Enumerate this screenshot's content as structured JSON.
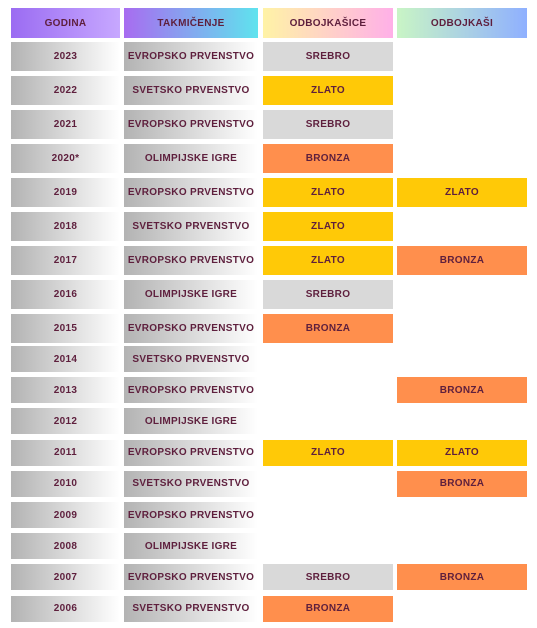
{
  "table": {
    "header": [
      "GODINA",
      "TAKMIČENJE",
      "ODBOJKAŠICE",
      "ODBOJKAŠI"
    ],
    "medal_colors": {
      "ZLATO": "#ffc907",
      "SREBRO": "#d9d9d9",
      "BRONZA": "#ff8f4d"
    },
    "rows": [
      [
        "2023",
        "EVROPSKO PRVENSTVO",
        "SREBRO",
        null
      ],
      [
        "2022",
        "SVETSKO PRVENSTVO",
        "ZLATO",
        null
      ],
      [
        "2021",
        "EVROPSKO PRVENSTVO",
        "SREBRO",
        null
      ],
      [
        "2020*",
        "OLIMPIJSKE IGRE",
        "BRONZA",
        null
      ],
      [
        "2019",
        "EVROPSKO PRVENSTVO",
        "ZLATO",
        "ZLATO"
      ],
      [
        "2018",
        "SVETSKO PRVENSTVO",
        "ZLATO",
        null
      ],
      [
        "2017",
        "EVROPSKO PRVENSTVO",
        "ZLATO",
        "BRONZA"
      ],
      [
        "2016",
        "OLIMPIJSKE IGRE",
        "SREBRO",
        null
      ],
      [
        "2015",
        "EVROPSKO PRVENSTVO",
        "BRONZA",
        null
      ],
      [
        "2014",
        "SVETSKO PRVENSTVO",
        null,
        null
      ],
      [
        "2013",
        "EVROPSKO PRVENSTVO",
        null,
        "BRONZA"
      ],
      [
        "2012",
        "OLIMPIJSKE IGRE",
        null,
        null
      ],
      [
        "2011",
        "EVROPSKO PRVENSTVO",
        "ZLATO",
        "ZLATO"
      ],
      [
        "2010",
        "SVETSKO PRVENSTVO",
        null,
        "BRONZA"
      ],
      [
        "2009",
        "EVROPSKO PRVENSTVO",
        null,
        null
      ],
      [
        "2008",
        "OLIMPIJSKE IGRE",
        null,
        null
      ],
      [
        "2007",
        "EVROPSKO PRVENSTVO",
        "SREBRO",
        "BRONZA"
      ],
      [
        "2006",
        "SVETSKO PRVENSTVO",
        "BRONZA",
        null
      ]
    ]
  }
}
